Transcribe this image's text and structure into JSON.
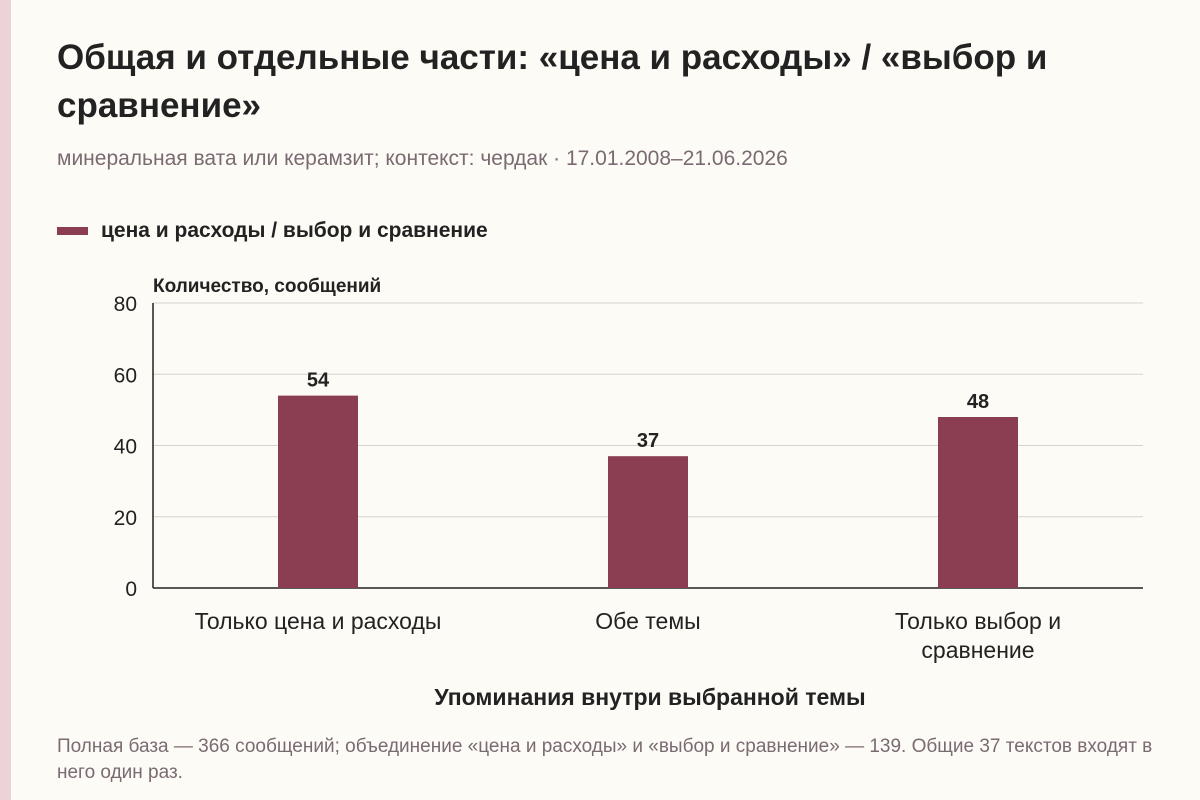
{
  "header": {
    "title": "Общая и отдельные части: «цена и расходы» / «выбор и сравнение»",
    "subtitle": "минеральная вата или керамзит; контекст: чердак · 17.01.2008–21.06.2026"
  },
  "legend": {
    "label": "цена и расходы / выбор и сравнение",
    "color": "#8b3d52"
  },
  "chart_data": {
    "type": "bar",
    "categories": [
      "Только цена и расходы",
      "Обе темы",
      "Только выбор и сравнение"
    ],
    "series": [
      {
        "name": "цена и расходы / выбор и сравнение",
        "values": [
          54,
          37,
          48
        ]
      }
    ],
    "xlabel": "Упоминания внутри выбранной темы",
    "ylabel": "Количество, сообщений",
    "ylim": [
      0,
      80
    ],
    "yticks": [
      0,
      20,
      40,
      60,
      80
    ],
    "grid": true,
    "legend_position": "top-left",
    "bar_color": "#8b3d52"
  },
  "footnote": "Полная база — 366 сообщений; объединение «цена и расходы» и «выбор и сравнение» — 139. Общие 37 текстов входят в него один раз."
}
